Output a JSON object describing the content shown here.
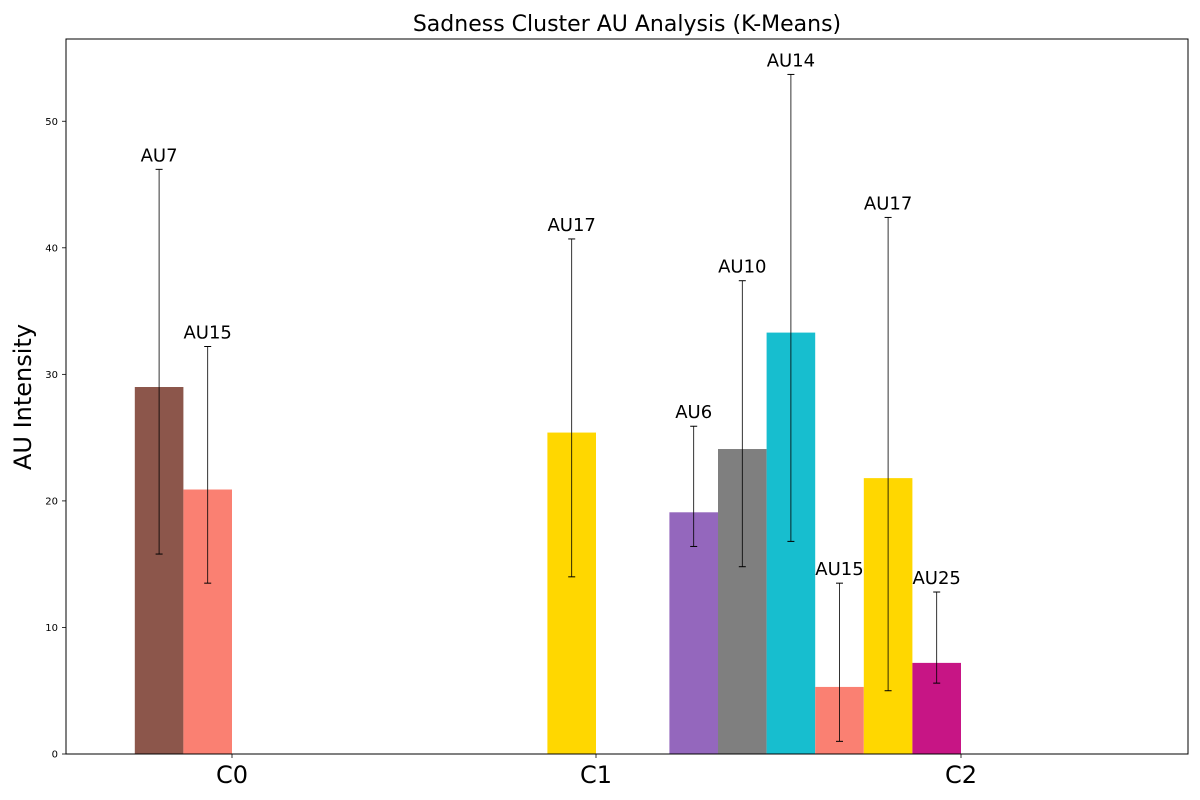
{
  "chart_data": {
    "type": "bar",
    "title": "Sadness Cluster AU Analysis (K-Means)",
    "xlabel": "",
    "ylabel": "AU Intensity",
    "ylim": [
      0,
      56.5
    ],
    "yticks": [
      0,
      10,
      20,
      30,
      40,
      50
    ],
    "grid": false,
    "legend": "none",
    "categories": [
      "C0",
      "C1",
      "C2"
    ],
    "groups": [
      {
        "category": "C0",
        "bars": [
          {
            "au": "AU7",
            "value": 29.0,
            "err_low": 15.8,
            "err_high": 46.2,
            "color": "#8c564b"
          },
          {
            "au": "AU15",
            "value": 20.9,
            "err_low": 13.5,
            "err_high": 32.2,
            "color": "#fa8072"
          }
        ]
      },
      {
        "category": "C1",
        "bars": [
          {
            "au": "AU17",
            "value": 25.4,
            "err_low": 14.0,
            "err_high": 40.7,
            "color": "#ffd700"
          }
        ]
      },
      {
        "category": "C2",
        "bars": [
          {
            "au": "AU6",
            "value": 19.1,
            "err_low": 16.4,
            "err_high": 25.9,
            "color": "#9467bd"
          },
          {
            "au": "AU10",
            "value": 24.1,
            "err_low": 14.8,
            "err_high": 37.4,
            "color": "#7f7f7f"
          },
          {
            "au": "AU14",
            "value": 33.3,
            "err_low": 16.8,
            "err_high": 53.7,
            "color": "#17becf"
          },
          {
            "au": "AU15",
            "value": 5.3,
            "err_low": 1.0,
            "err_high": 13.5,
            "color": "#fa8072"
          },
          {
            "au": "AU17",
            "value": 21.8,
            "err_low": 5.0,
            "err_high": 42.4,
            "color": "#ffd700"
          },
          {
            "au": "AU25",
            "value": 7.2,
            "err_low": 5.6,
            "err_high": 12.8,
            "color": "#c71585"
          }
        ]
      }
    ]
  }
}
